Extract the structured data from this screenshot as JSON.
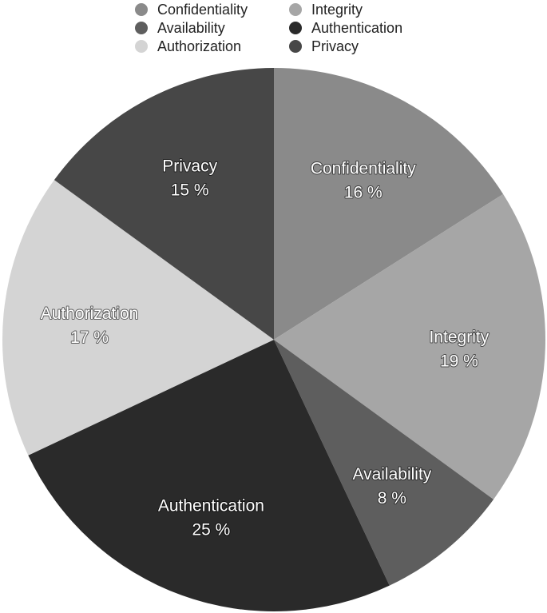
{
  "chart_data": {
    "type": "pie",
    "title": "",
    "start_angle_deg": 0,
    "direction": "clockwise",
    "legend_position": "top",
    "slices": [
      {
        "label": "Confidentiality",
        "value": 16,
        "value_label": "16 %",
        "color": "#8a8a8a"
      },
      {
        "label": "Integrity",
        "value": 19,
        "value_label": "19 %",
        "color": "#a6a6a6"
      },
      {
        "label": "Availability",
        "value": 8,
        "value_label": "8 %",
        "color": "#5e5e5e"
      },
      {
        "label": "Authentication",
        "value": 25,
        "value_label": "25 %",
        "color": "#2a2a2a"
      },
      {
        "label": "Authorization",
        "value": 17,
        "value_label": "17 %",
        "color": "#d4d4d4"
      },
      {
        "label": "Privacy",
        "value": 15,
        "value_label": "15 %",
        "color": "#474747"
      }
    ]
  }
}
